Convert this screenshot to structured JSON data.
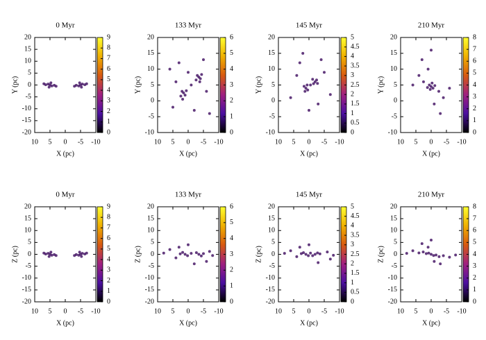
{
  "chart_data": [
    {
      "type": "scatter",
      "title": "0 Myr",
      "x_label": "X (pc)",
      "y_label": "Y (pc)",
      "color": "#3c0a5e",
      "x": [
        5,
        5.6,
        4.4,
        5.3,
        4.7,
        6.4,
        3.6,
        7,
        3,
        -5,
        -5.6,
        -4.4,
        -5.3,
        -4.7,
        -6.4,
        -3.6,
        -7,
        -3
      ],
      "y": [
        0,
        0.4,
        -0.4,
        -0.9,
        0.9,
        0.1,
        -0.1,
        0.5,
        -0.5,
        0,
        0.4,
        -0.4,
        -0.9,
        0.9,
        0.1,
        -0.1,
        0.5,
        -0.5
      ],
      "xlim": [
        10,
        -10
      ],
      "xticks": [
        10,
        5,
        0,
        -5,
        -10
      ],
      "ylim": [
        -20,
        20
      ],
      "yticks": [
        -20,
        -15,
        -10,
        -5,
        0,
        5,
        10,
        15,
        20
      ],
      "zlim": [
        0,
        9
      ],
      "zticks": [
        0,
        1,
        2,
        3,
        4,
        5,
        6,
        7,
        8,
        9
      ],
      "colormap": [
        "#000000",
        "#4b0fa0",
        "#a02080",
        "#d85a10",
        "#f0b000",
        "#ffff30"
      ]
    },
    {
      "type": "scatter",
      "title": "133 Myr",
      "x_label": "X (pc)",
      "y_label": "Y (pc)",
      "color": "#3c0a5e",
      "x": [
        1.5,
        2,
        1,
        2.4,
        0.6,
        1.8,
        -3.5,
        -3,
        -4,
        -2.6,
        -4.4,
        -3.8,
        -1,
        4,
        -6,
        3,
        -5,
        5,
        -2,
        0,
        6,
        -7
      ],
      "y": [
        2.5,
        3,
        1.8,
        1.5,
        3.2,
        0.5,
        7.5,
        8,
        7,
        6.6,
        8.3,
        6,
        5,
        6,
        3,
        12,
        13,
        -2,
        -3,
        9,
        10,
        -4
      ],
      "xlim": [
        10,
        -10
      ],
      "xticks": [
        10,
        5,
        0,
        -5,
        -10
      ],
      "ylim": [
        -10,
        20
      ],
      "yticks": [
        -10,
        -5,
        0,
        5,
        10,
        15,
        20
      ],
      "zlim": [
        0,
        6
      ],
      "zticks": [
        0,
        1,
        2,
        3,
        4,
        5,
        6
      ],
      "colormap": [
        "#000000",
        "#4b0fa0",
        "#a02080",
        "#d85a10",
        "#f0b000",
        "#ffff30"
      ]
    },
    {
      "type": "scatter",
      "title": "145 Myr",
      "x_label": "X (pc)",
      "y_label": "Y (pc)",
      "color": "#3c0a5e",
      "x": [
        1,
        1.6,
        0.4,
        1.3,
        0.6,
        -2,
        -2.5,
        -1.5,
        -2.8,
        -1.2,
        -0.5,
        4,
        -5,
        3,
        -4,
        6,
        -7,
        0,
        2,
        -3
      ],
      "y": [
        4,
        4.6,
        3.4,
        3,
        5,
        6,
        6.6,
        5.4,
        5.5,
        6.8,
        5,
        8,
        9,
        12,
        13,
        1,
        2,
        -3,
        15,
        -1
      ],
      "xlim": [
        10,
        -10
      ],
      "xticks": [
        10,
        5,
        0,
        -5,
        -10
      ],
      "ylim": [
        -10,
        20
      ],
      "yticks": [
        -10,
        -5,
        0,
        5,
        10,
        15,
        20
      ],
      "zlim": [
        0,
        5
      ],
      "zticks": [
        0,
        0.5,
        1,
        1.5,
        2,
        2.5,
        3,
        3.5,
        4,
        4.5,
        5
      ],
      "colormap": [
        "#000000",
        "#4b0fa0",
        "#a02080",
        "#d85a10",
        "#f0b000",
        "#ffff30"
      ]
    },
    {
      "type": "scatter",
      "title": "210 Myr",
      "x_label": "X (pc)",
      "y_label": "Y (pc)",
      "color": "#3c0a5e",
      "x": [
        0,
        0.6,
        -0.6,
        0.3,
        -0.3,
        1.2,
        -1.2,
        2.5,
        -2.5,
        4,
        -4,
        1,
        -1,
        6,
        -6,
        3,
        -3,
        0
      ],
      "y": [
        4.5,
        5,
        4,
        3.6,
        5.6,
        4.2,
        4.8,
        6,
        3,
        8,
        1,
        10,
        -1,
        5,
        4,
        13,
        -4,
        16
      ],
      "xlim": [
        10,
        -10
      ],
      "xticks": [
        10,
        5,
        0,
        -5,
        -10
      ],
      "ylim": [
        -10,
        20
      ],
      "yticks": [
        -10,
        -5,
        0,
        5,
        10,
        15,
        20
      ],
      "zlim": [
        0,
        8
      ],
      "zticks": [
        0,
        1,
        2,
        3,
        4,
        5,
        6,
        7,
        8
      ],
      "colormap": [
        "#000000",
        "#4b0fa0",
        "#a02080",
        "#d85a10",
        "#f0b000",
        "#ffff30"
      ]
    },
    {
      "type": "scatter",
      "title": "0 Myr",
      "x_label": "X (pc)",
      "y_label": "Z (pc)",
      "color": "#3c0a5e",
      "x": [
        5,
        5.6,
        4.4,
        5.3,
        4.7,
        6.4,
        3.6,
        7,
        3,
        -5,
        -5.6,
        -4.4,
        -5.3,
        -4.7,
        -6.4,
        -3.6,
        -7,
        -3
      ],
      "y": [
        0,
        0.4,
        -0.4,
        -0.9,
        0.9,
        0.1,
        -0.1,
        0.5,
        -0.5,
        0,
        0.4,
        -0.4,
        -0.9,
        0.9,
        0.1,
        -0.1,
        0.5,
        -0.5
      ],
      "xlim": [
        10,
        -10
      ],
      "xticks": [
        10,
        5,
        0,
        -5,
        -10
      ],
      "ylim": [
        -20,
        20
      ],
      "yticks": [
        -20,
        -15,
        -10,
        -5,
        0,
        5,
        10,
        15,
        20
      ],
      "zlim": [
        0,
        9
      ],
      "zticks": [
        0,
        1,
        2,
        3,
        4,
        5,
        6,
        7,
        8,
        9
      ],
      "colormap": [
        "#000000",
        "#4b0fa0",
        "#a02080",
        "#d85a10",
        "#f0b000",
        "#ffff30"
      ]
    },
    {
      "type": "scatter",
      "title": "133 Myr",
      "x_label": "X (pc)",
      "y_label": "Z (pc)",
      "color": "#3c0a5e",
      "x": [
        1,
        1.8,
        0.2,
        2.6,
        -3.5,
        -2.7,
        -4.3,
        -5,
        -1,
        4,
        -7,
        6,
        0,
        -2,
        3,
        -6,
        8,
        -8
      ],
      "y": [
        0,
        0.8,
        -0.6,
        0.2,
        0,
        0.7,
        -0.7,
        0.3,
        0.4,
        -1.5,
        1.2,
        2,
        4,
        -4,
        3,
        -3,
        0.5,
        -0.5
      ],
      "xlim": [
        10,
        -10
      ],
      "xticks": [
        10,
        5,
        0,
        -5,
        -10
      ],
      "ylim": [
        -20,
        20
      ],
      "yticks": [
        -20,
        -15,
        -10,
        -5,
        0,
        5,
        10,
        15,
        20
      ],
      "zlim": [
        0,
        6
      ],
      "zticks": [
        0,
        1,
        2,
        3,
        4,
        5,
        6
      ],
      "colormap": [
        "#000000",
        "#4b0fa0",
        "#a02080",
        "#d85a10",
        "#f0b000",
        "#ffff30"
      ]
    },
    {
      "type": "scatter",
      "title": "145 Myr",
      "x_label": "X (pc)",
      "y_label": "Z (pc)",
      "color": "#3c0a5e",
      "x": [
        1,
        1.8,
        0.2,
        2.5,
        -2,
        -2.8,
        -1.2,
        -3.6,
        -0.5,
        4,
        -6,
        6,
        0,
        -3,
        3,
        -7,
        8,
        -8
      ],
      "y": [
        0,
        0.7,
        -0.6,
        0.3,
        0,
        0.6,
        -0.6,
        0.2,
        0.5,
        -1,
        1,
        1.5,
        4,
        -3.5,
        3,
        -2,
        0.4,
        -0.4
      ],
      "xlim": [
        10,
        -10
      ],
      "xticks": [
        10,
        5,
        0,
        -5,
        -10
      ],
      "ylim": [
        -20,
        20
      ],
      "yticks": [
        -20,
        -15,
        -10,
        -5,
        0,
        5,
        10,
        15,
        20
      ],
      "zlim": [
        0,
        5
      ],
      "zticks": [
        0,
        0.5,
        1,
        1.5,
        2,
        2.5,
        3,
        3.5,
        4,
        4.5,
        5
      ],
      "colormap": [
        "#000000",
        "#4b0fa0",
        "#a02080",
        "#d85a10",
        "#f0b000",
        "#ffff30"
      ]
    },
    {
      "type": "scatter",
      "title": "210 Myr",
      "x_label": "X (pc)",
      "y_label": "Z (pc)",
      "color": "#3c0a5e",
      "x": [
        0,
        0.8,
        -0.8,
        1.6,
        -1.6,
        2.6,
        -2.6,
        4,
        -4,
        6,
        -6,
        1,
        -1,
        3,
        -3,
        8,
        -8,
        0
      ],
      "y": [
        0,
        0.5,
        -0.5,
        0.3,
        -0.3,
        1,
        -1,
        0.6,
        -0.6,
        1.5,
        -1.2,
        3,
        -3,
        4.5,
        -4,
        0.4,
        -0.3,
        6
      ],
      "xlim": [
        10,
        -10
      ],
      "xticks": [
        10,
        5,
        0,
        -5,
        -10
      ],
      "ylim": [
        -20,
        20
      ],
      "yticks": [
        -20,
        -15,
        -10,
        -5,
        0,
        5,
        10,
        15,
        20
      ],
      "zlim": [
        0,
        8
      ],
      "zticks": [
        0,
        1,
        2,
        3,
        4,
        5,
        6,
        7,
        8
      ],
      "colormap": [
        "#000000",
        "#4b0fa0",
        "#a02080",
        "#d85a10",
        "#f0b000",
        "#ffff30"
      ]
    }
  ]
}
